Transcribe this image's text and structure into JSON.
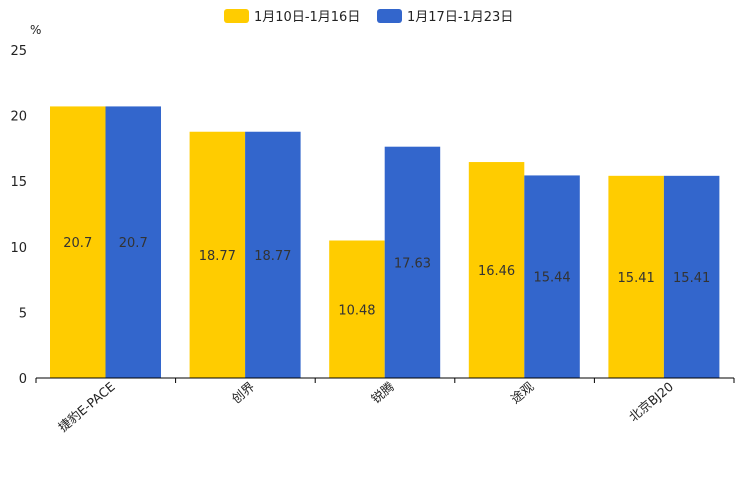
{
  "chart_data": {
    "type": "bar",
    "title": "",
    "ylabel_unit": "%",
    "xlabel": "",
    "categories": [
      "捷豹E-PACE",
      "创界",
      "锐腾",
      "途观",
      "北京BJ20"
    ],
    "series": [
      {
        "name": "1月10日-1月16日",
        "color": "#FFCC00",
        "values": [
          20.7,
          18.77,
          10.48,
          16.46,
          15.41
        ],
        "labels": [
          "20.7",
          "18.77",
          "10.48",
          "16.46",
          "15.41"
        ]
      },
      {
        "name": "1月17日-1月23日",
        "color": "#3366CC",
        "values": [
          20.7,
          18.77,
          17.63,
          15.44,
          15.41
        ],
        "labels": [
          "20.7",
          "18.77",
          "17.63",
          "15.44",
          "15.41"
        ]
      }
    ],
    "ylim": [
      0,
      25
    ],
    "yticks": [
      "0",
      "5",
      "10",
      "15",
      "20",
      "25"
    ],
    "legend_position": "top-center",
    "grid": false
  }
}
